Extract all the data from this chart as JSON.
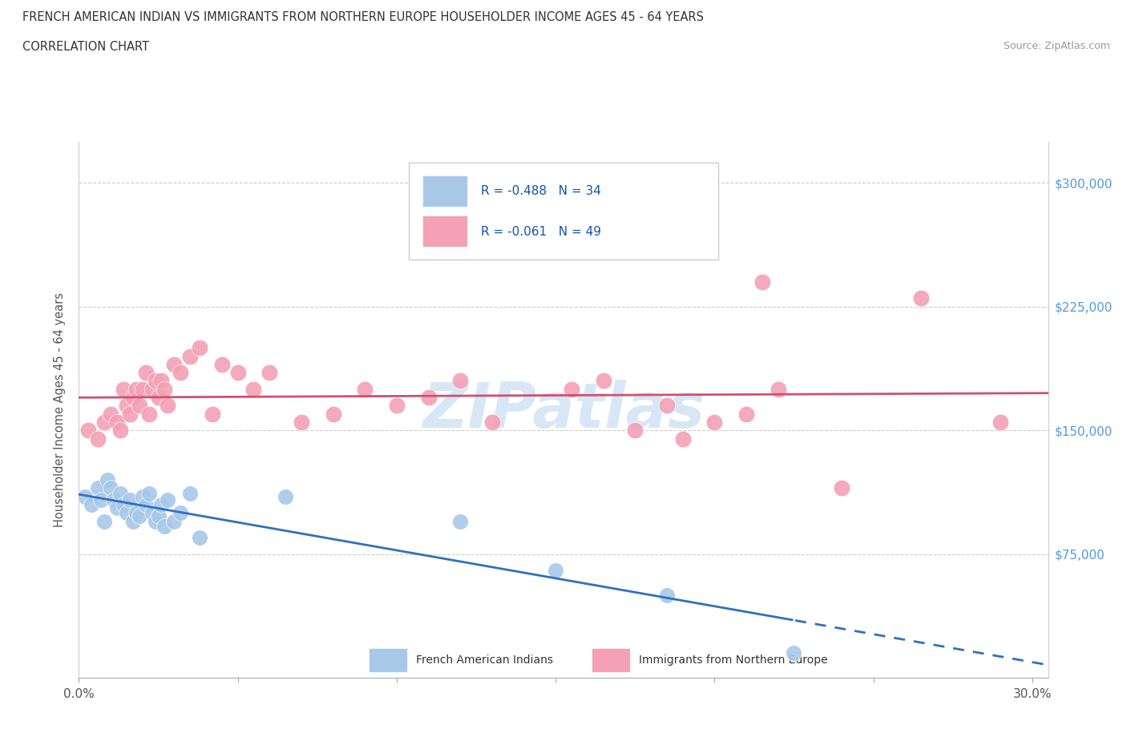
{
  "title_line1": "FRENCH AMERICAN INDIAN VS IMMIGRANTS FROM NORTHERN EUROPE HOUSEHOLDER INCOME AGES 45 - 64 YEARS",
  "title_line2": "CORRELATION CHART",
  "source": "Source: ZipAtlas.com",
  "ylabel": "Householder Income Ages 45 - 64 years",
  "xlim": [
    0.0,
    0.305
  ],
  "ylim": [
    0,
    325000
  ],
  "xticks": [
    0.0,
    0.05,
    0.1,
    0.15,
    0.2,
    0.25,
    0.3
  ],
  "xtick_labels": [
    "0.0%",
    "",
    "",
    "",
    "",
    "",
    "30.0%"
  ],
  "ytick_labels": [
    "$75,000",
    "$150,000",
    "$225,000",
    "$300,000"
  ],
  "ytick_values": [
    75000,
    150000,
    225000,
    300000
  ],
  "r_blue": -0.488,
  "n_blue": 34,
  "r_pink": -0.061,
  "n_pink": 49,
  "blue_color": "#a8c8e8",
  "pink_color": "#f4a0b5",
  "blue_line_color": "#3070c0",
  "pink_line_color": "#d05070",
  "legend_label_blue": "French American Indians",
  "legend_label_pink": "Immigrants from Northern Europe",
  "watermark": "ZIPatlas",
  "blue_scatter_x": [
    0.002,
    0.004,
    0.006,
    0.007,
    0.008,
    0.009,
    0.01,
    0.011,
    0.012,
    0.013,
    0.014,
    0.015,
    0.016,
    0.017,
    0.018,
    0.019,
    0.02,
    0.021,
    0.022,
    0.023,
    0.024,
    0.025,
    0.026,
    0.027,
    0.028,
    0.03,
    0.032,
    0.035,
    0.038,
    0.065,
    0.12,
    0.15,
    0.185,
    0.225
  ],
  "blue_scatter_y": [
    110000,
    105000,
    115000,
    108000,
    95000,
    120000,
    115000,
    108000,
    103000,
    112000,
    105000,
    100000,
    108000,
    95000,
    100000,
    98000,
    110000,
    105000,
    112000,
    100000,
    95000,
    98000,
    105000,
    92000,
    108000,
    95000,
    100000,
    112000,
    85000,
    110000,
    95000,
    65000,
    50000,
    15000
  ],
  "pink_scatter_x": [
    0.003,
    0.006,
    0.008,
    0.01,
    0.012,
    0.013,
    0.014,
    0.015,
    0.016,
    0.017,
    0.018,
    0.019,
    0.02,
    0.021,
    0.022,
    0.023,
    0.024,
    0.025,
    0.026,
    0.027,
    0.028,
    0.03,
    0.032,
    0.035,
    0.038,
    0.042,
    0.045,
    0.05,
    0.055,
    0.06,
    0.07,
    0.08,
    0.09,
    0.1,
    0.11,
    0.12,
    0.13,
    0.155,
    0.165,
    0.175,
    0.185,
    0.19,
    0.2,
    0.21,
    0.215,
    0.22,
    0.24,
    0.265,
    0.29
  ],
  "pink_scatter_y": [
    150000,
    145000,
    155000,
    160000,
    155000,
    150000,
    175000,
    165000,
    160000,
    170000,
    175000,
    165000,
    175000,
    185000,
    160000,
    175000,
    180000,
    170000,
    180000,
    175000,
    165000,
    190000,
    185000,
    195000,
    200000,
    160000,
    190000,
    185000,
    175000,
    185000,
    155000,
    160000,
    175000,
    165000,
    170000,
    180000,
    155000,
    175000,
    180000,
    150000,
    165000,
    145000,
    155000,
    160000,
    240000,
    175000,
    115000,
    230000,
    155000
  ]
}
